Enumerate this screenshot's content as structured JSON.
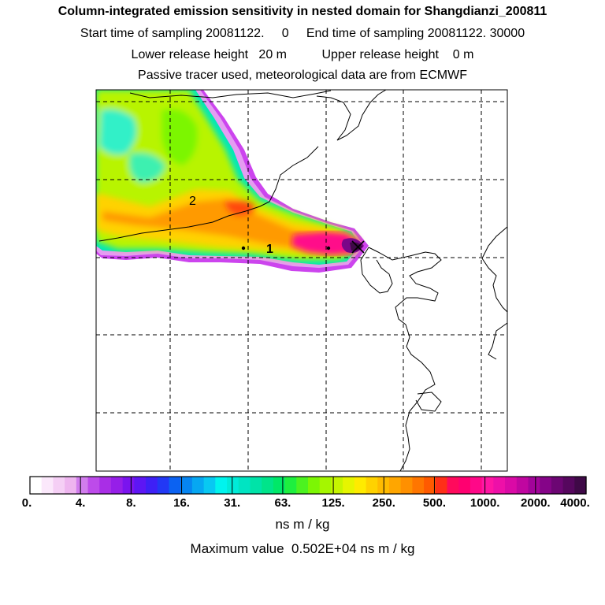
{
  "header": {
    "title": "Column-integrated emission sensitivity in nested domain for Shangdianzi_200811",
    "sampling": "Start time of sampling 20081122.     0     End time of sampling 20081122. 30000",
    "release": "Lower release height   20 m          Upper release height    0 m",
    "note": "Passive tracer used, meteorological data are from ECMWF"
  },
  "map": {
    "labels": [
      "2",
      "1"
    ],
    "receptor_marker": "X"
  },
  "colorbar": {
    "tick_labels": [
      "0.",
      "4.",
      "8.",
      "16.",
      "31.",
      "63.",
      "125.",
      "250.",
      "500.",
      "1000.",
      "2000.",
      "4000."
    ],
    "colors": [
      "#ffffff",
      "#fbe8fb",
      "#f5cff5",
      "#eeb5ef",
      "#d17ded",
      "#bd4bea",
      "#a92ee6",
      "#961fe8",
      "#7a14ee",
      "#5d16f4",
      "#3e20f6",
      "#2238f5",
      "#0b62f2",
      "#0685f1",
      "#06a7f2",
      "#08c8f2",
      "#00f4ee",
      "#00ebd8",
      "#00e4c2",
      "#00e3a8",
      "#00e48a",
      "#00e868",
      "#1eef3f",
      "#4cf220",
      "#7cf604",
      "#a5f600",
      "#c6f500",
      "#e6f500",
      "#ffeb00",
      "#ffd200",
      "#ffbb00",
      "#ffa600",
      "#ff9000",
      "#ff7600",
      "#ff5a00",
      "#ff2f18",
      "#ff0a5c",
      "#ff0070",
      "#ff0888",
      "#ff16a3",
      "#ee10a8",
      "#da0aa6",
      "#c006a0",
      "#a2049a",
      "#850488",
      "#6c0673",
      "#56075e",
      "#3f0947"
    ],
    "units": "ns m / kg",
    "maximum": "Maximum value  0.502E+04 ns m / kg"
  }
}
